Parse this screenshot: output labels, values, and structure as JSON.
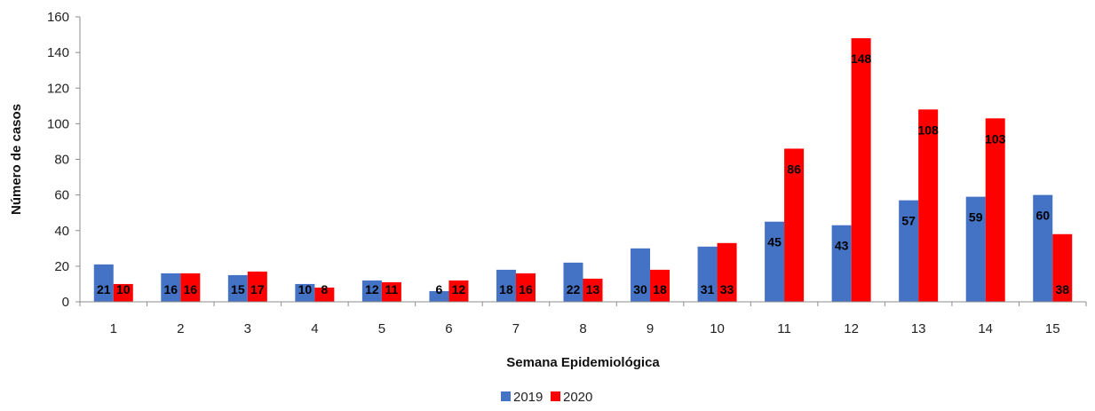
{
  "chart_data": {
    "type": "bar",
    "categories": [
      "1",
      "2",
      "3",
      "4",
      "5",
      "6",
      "7",
      "8",
      "9",
      "10",
      "11",
      "12",
      "13",
      "14",
      "15"
    ],
    "series": [
      {
        "name": "2019",
        "color": "#4472c4",
        "values": [
          21,
          16,
          15,
          10,
          12,
          6,
          18,
          22,
          30,
          31,
          45,
          43,
          57,
          59,
          60
        ]
      },
      {
        "name": "2020",
        "color": "#ff0000",
        "values": [
          10,
          16,
          17,
          8,
          11,
          12,
          16,
          13,
          18,
          33,
          86,
          148,
          108,
          103,
          38
        ]
      }
    ],
    "title": "",
    "xlabel": "Semana Epidemiológica",
    "ylabel": "Número de casos",
    "ylim": [
      0,
      160
    ],
    "yticks": [
      0,
      20,
      40,
      60,
      80,
      100,
      120,
      140,
      160
    ],
    "grid": false,
    "legend_position": "bottom-center",
    "data_labels": true
  }
}
